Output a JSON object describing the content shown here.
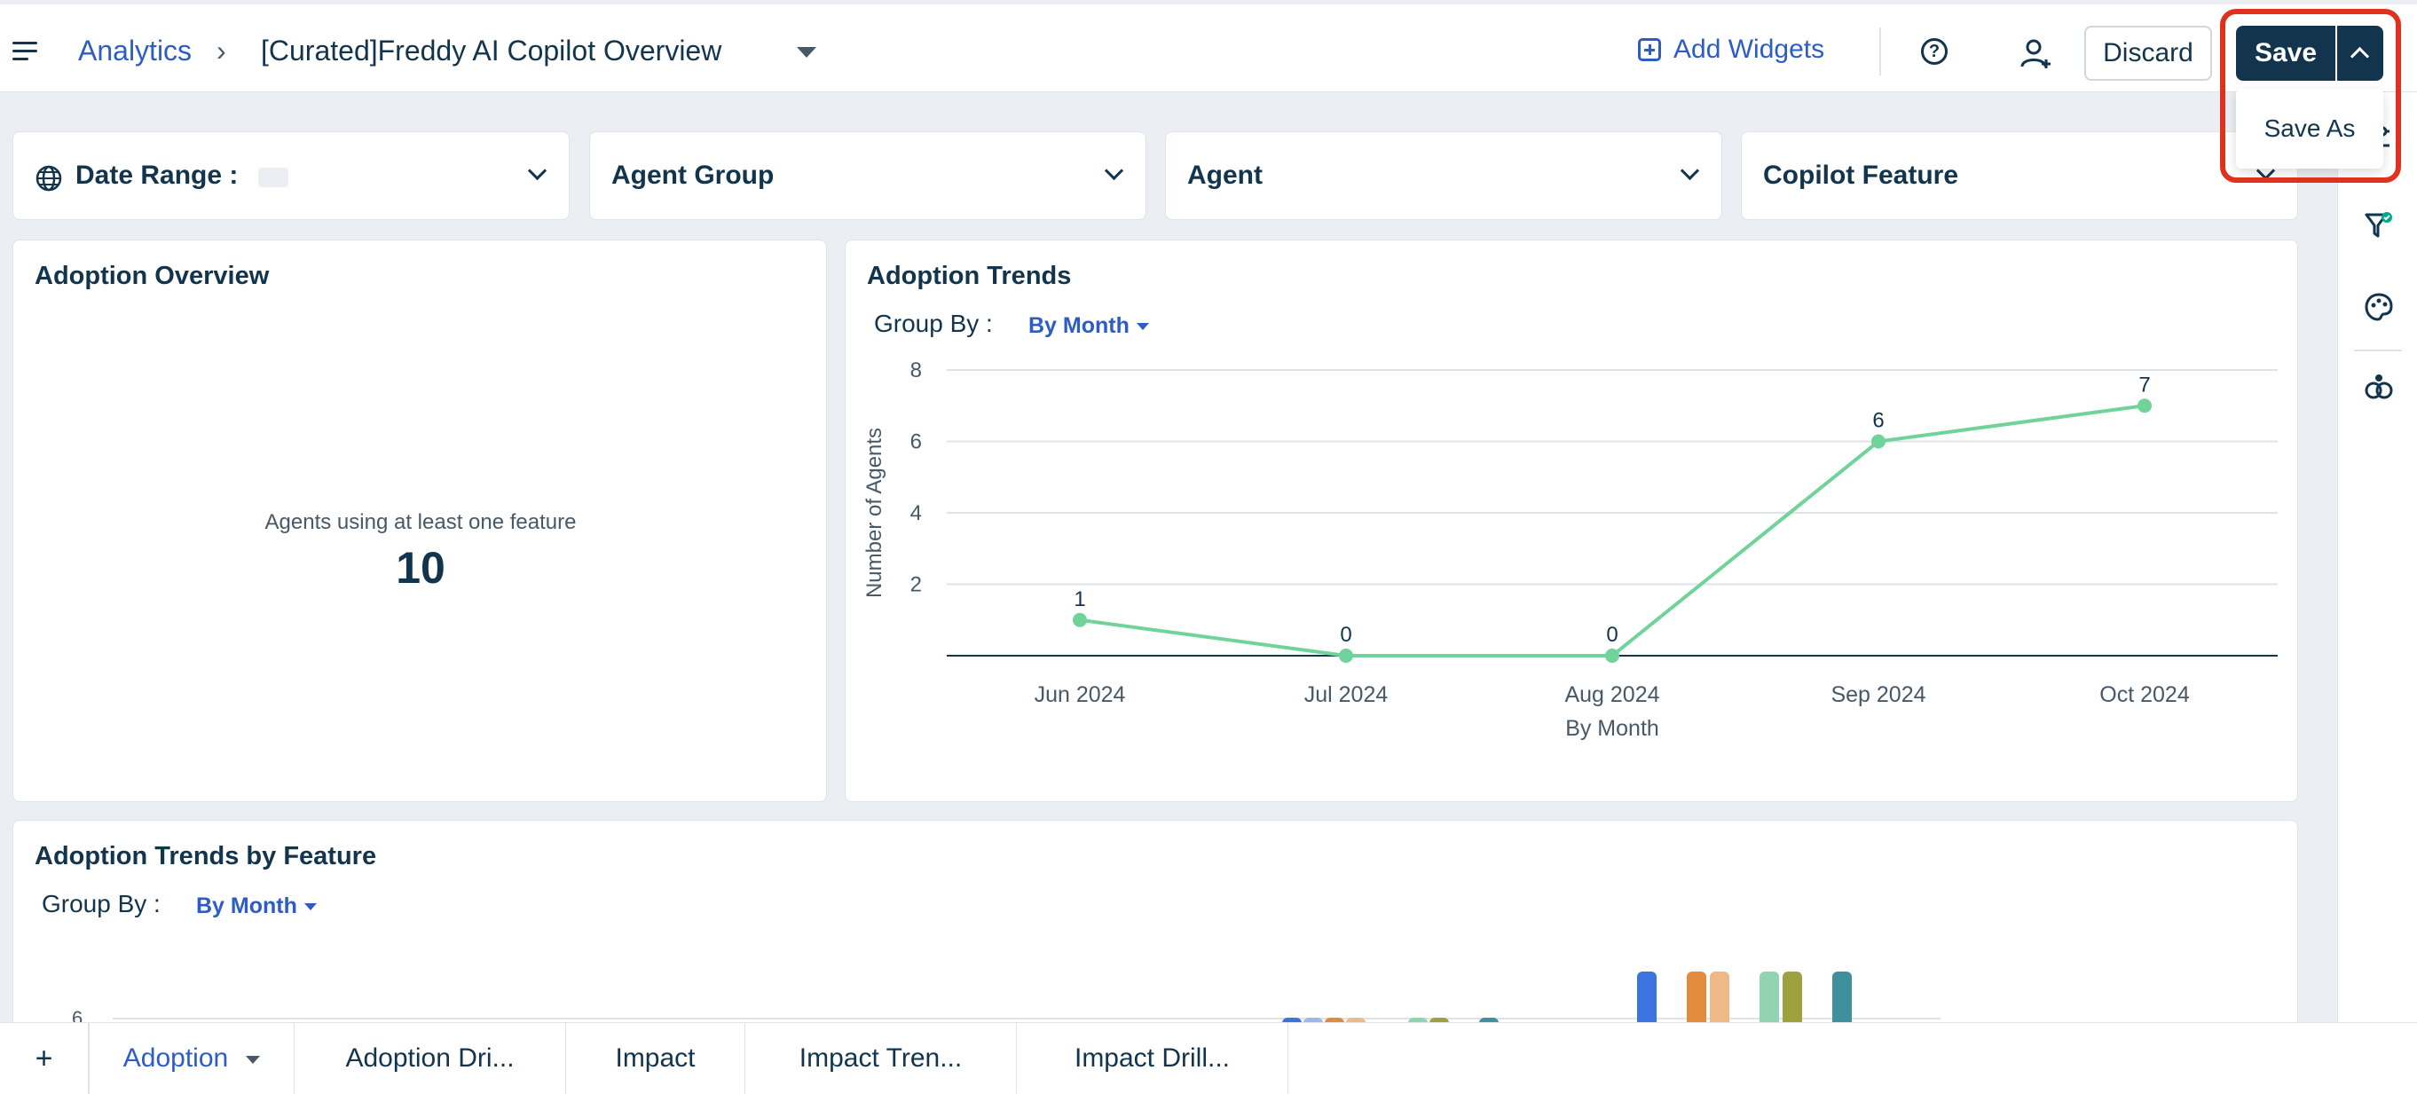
{
  "header": {
    "breadcrumb_root": "Analytics",
    "breadcrumb_sep": "›",
    "title": "[Curated]Freddy AI Copilot Overview",
    "add_widgets": "Add Widgets",
    "discard": "Discard",
    "save": "Save",
    "save_as": "Save As"
  },
  "filters": {
    "date_range": "Date Range :",
    "agent_group": "Agent Group",
    "agent": "Agent",
    "copilot_feature": "Copilot Feature"
  },
  "adoption_overview": {
    "title": "Adoption Overview",
    "kpi_label": "Agents using at least one feature",
    "kpi_value": "10"
  },
  "adoption_trends": {
    "title": "Adoption Trends",
    "group_by_label": "Group By :",
    "group_by_value": "By Month"
  },
  "feature_trends": {
    "title": "Adoption Trends by Feature",
    "group_by_label": "Group By :",
    "group_by_value": "By Month",
    "y_tick_top": "6"
  },
  "chart_data": {
    "type": "line",
    "categories": [
      "Jun 2024",
      "Jul 2024",
      "Aug 2024",
      "Sep 2024",
      "Oct 2024"
    ],
    "values": [
      1,
      0,
      0,
      6,
      7
    ],
    "xlabel": "By Month",
    "ylabel": "Number of Agents",
    "ylim": [
      0,
      8
    ],
    "yticks": [
      2,
      4,
      6,
      8
    ],
    "grid": true,
    "data_labels": true,
    "color": "#6fd39a"
  },
  "tabs": {
    "add": "+",
    "items": [
      "Adoption",
      "Adoption Dri...",
      "Impact",
      "Impact Tren...",
      "Impact Drill..."
    ]
  },
  "colors": {
    "brand": "#12344d",
    "link": "#2c5cc5",
    "highlight": "#e0301e"
  }
}
